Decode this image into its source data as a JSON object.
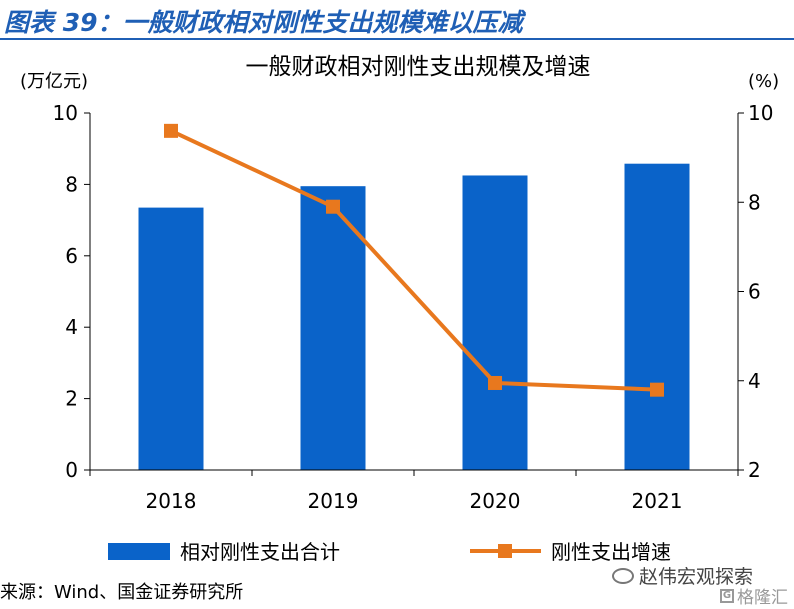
{
  "figure_label": "图表 39：一般财政相对刚性支出规模难以压减",
  "source": "来源：Wind、国金证券研究所",
  "brand": "赵伟宏观探索",
  "watermark": "格隆汇",
  "colors": {
    "bar": "#0a63c9",
    "line": "#e8781e",
    "header": "#1f5fb5"
  },
  "chart_data": {
    "type": "bar+line",
    "title": "一般财政相对刚性支出规模及增速",
    "categories": [
      "2018",
      "2019",
      "2020",
      "2021"
    ],
    "y_left": {
      "unit": "(万亿元)",
      "min": 0,
      "max": 10,
      "ticks": [
        0,
        2,
        4,
        6,
        8,
        10
      ]
    },
    "y_right": {
      "unit": "(%)",
      "min": 2,
      "max": 10,
      "ticks": [
        2,
        4,
        6,
        8,
        10
      ]
    },
    "series": [
      {
        "name": "相对刚性支出合计",
        "type": "bar",
        "axis": "left",
        "values": [
          7.35,
          7.95,
          8.25,
          8.58
        ]
      },
      {
        "name": "刚性支出增速",
        "type": "line",
        "axis": "right",
        "values": [
          9.6,
          7.9,
          3.95,
          3.8
        ]
      }
    ],
    "grid": false,
    "legend_position": "bottom"
  }
}
